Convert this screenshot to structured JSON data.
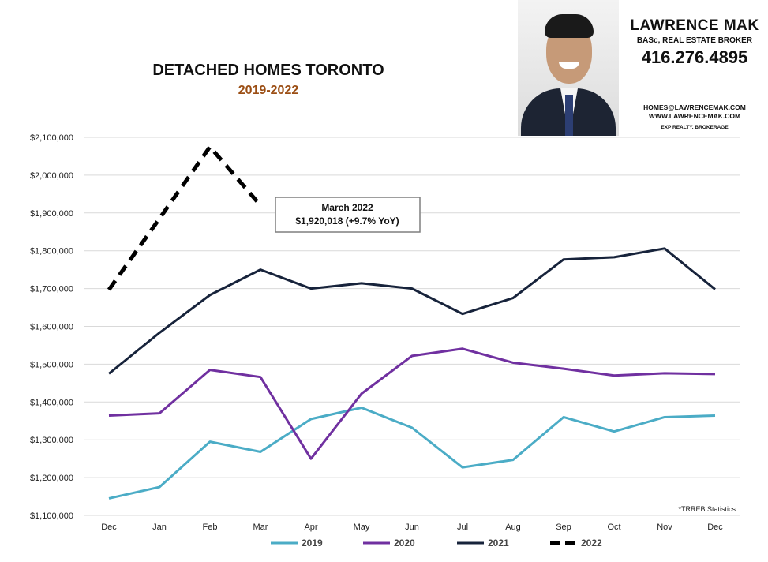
{
  "header": {
    "title": "DETACHED HOMES TORONTO",
    "subtitle": "2019-2022"
  },
  "agent_card": {
    "name": "LAWRENCE MAK",
    "credentials": "BASc, REAL ESTATE BROKER",
    "phone": "416.276.4895",
    "email": "HOMES@LAWRENCEMAK.COM",
    "website": "WWW.LAWRENCEMAK.COM",
    "brokerage": "EXP REALTY, BROKERAGE",
    "photo_icon": "agent-portrait"
  },
  "chart_data": {
    "type": "line",
    "title": "DETACHED HOMES TORONTO",
    "subtitle": "2019-2022",
    "categories": [
      "Dec",
      "Jan",
      "Feb",
      "Mar",
      "Apr",
      "May",
      "Jun",
      "Jul",
      "Aug",
      "Sep",
      "Oct",
      "Nov",
      "Dec"
    ],
    "ylim": [
      1100000,
      2100000
    ],
    "y_ticks": [
      1100000,
      1200000,
      1300000,
      1400000,
      1500000,
      1600000,
      1700000,
      1800000,
      1900000,
      2000000,
      2100000
    ],
    "y_tick_labels": [
      "$1,100,000",
      "$1,200,000",
      "$1,300,000",
      "$1,400,000",
      "$1,500,000",
      "$1,600,000",
      "$1,700,000",
      "$1,800,000",
      "$1,900,000",
      "$2,000,000",
      "$2,100,000"
    ],
    "grid": "horizontal",
    "legend_position": "bottom",
    "series": [
      {
        "name": "2019",
        "color": "#4bacc6",
        "style": "solid",
        "values": [
          1145000,
          1175000,
          1295000,
          1268000,
          1355000,
          1385000,
          1332000,
          1227000,
          1247000,
          1360000,
          1322000,
          1360000,
          1364000
        ]
      },
      {
        "name": "2020",
        "color": "#7030a0",
        "style": "solid",
        "values": [
          1364000,
          1370000,
          1485000,
          1466000,
          1250000,
          1422000,
          1522000,
          1541000,
          1504000,
          1488000,
          1470000,
          1476000,
          1474000
        ]
      },
      {
        "name": "2021",
        "color": "#17233b",
        "style": "solid",
        "values": [
          1475000,
          1583000,
          1683000,
          1750000,
          1700000,
          1714000,
          1700000,
          1633000,
          1675000,
          1777000,
          1783000,
          1806000,
          1698000
        ]
      },
      {
        "name": "2022",
        "color": "#000000",
        "style": "dashed",
        "values": [
          1697000,
          1885000,
          2075000,
          1920018,
          null,
          null,
          null,
          null,
          null,
          null,
          null,
          null,
          null
        ]
      }
    ],
    "annotation": {
      "line1": "March 2022",
      "line2": "$1,920,018  (+9.7%  YoY)"
    },
    "source_note": "*TRREB Statistics"
  }
}
